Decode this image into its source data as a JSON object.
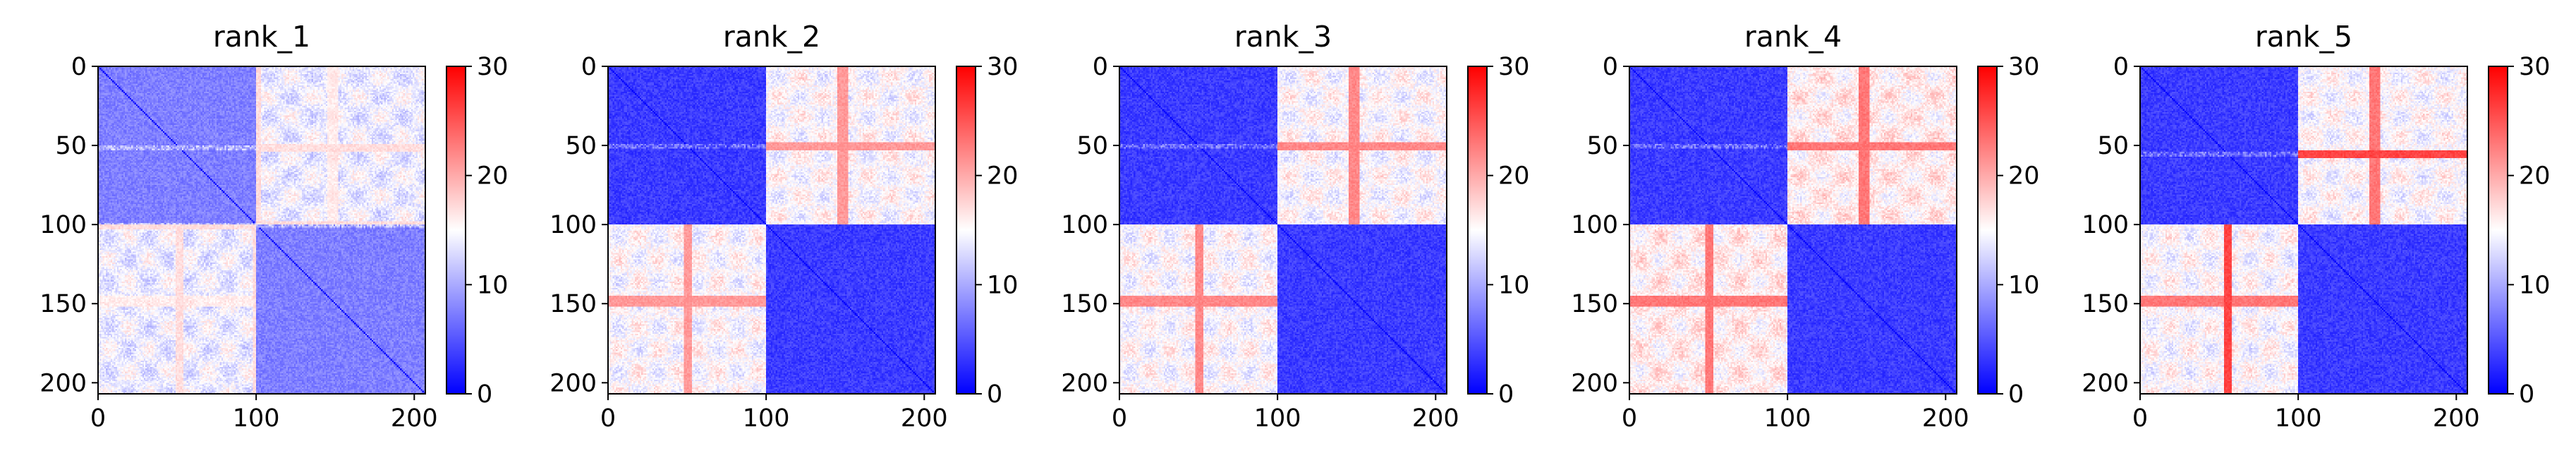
{
  "figure": {
    "background": "#ffffff"
  },
  "chart_data": [
    {
      "type": "heatmap",
      "title": "rank_1",
      "matrix_size": 207,
      "x_ticks": [
        0,
        100,
        200
      ],
      "y_ticks": [
        0,
        50,
        100,
        150,
        200
      ],
      "xlim": [
        0,
        207
      ],
      "ylim": [
        207,
        0
      ],
      "colorbar": {
        "ticks": [
          0,
          10,
          20,
          30
        ],
        "range": [
          0,
          30
        ],
        "colormap": "bwr",
        "colors": [
          "#0000ff",
          "#ffffff",
          "#ff0000"
        ]
      },
      "domain_boundary": 100,
      "pattern": {
        "within_domain_level": 6,
        "between_domain_level": 14,
        "hot_rows": [
          51,
          100
        ],
        "hot_row_level": 18,
        "hot_cols": [
          148
        ],
        "hot_col_level": 17
      }
    },
    {
      "type": "heatmap",
      "title": "rank_2",
      "matrix_size": 207,
      "x_ticks": [
        0,
        100,
        200
      ],
      "y_ticks": [
        0,
        50,
        100,
        150,
        200
      ],
      "xlim": [
        0,
        207
      ],
      "ylim": [
        207,
        0
      ],
      "colorbar": {
        "ticks": [
          0,
          10,
          20,
          30
        ],
        "range": [
          0,
          30
        ],
        "colormap": "bwr",
        "colors": [
          "#0000ff",
          "#ffffff",
          "#ff0000"
        ]
      },
      "domain_boundary": 100,
      "pattern": {
        "within_domain_level": 2,
        "between_domain_level": 15,
        "hot_rows": [
          50
        ],
        "hot_row_level": 22,
        "hot_cols": [
          148
        ],
        "hot_col_level": 22
      }
    },
    {
      "type": "heatmap",
      "title": "rank_3",
      "matrix_size": 207,
      "x_ticks": [
        0,
        100,
        200
      ],
      "y_ticks": [
        0,
        50,
        100,
        150,
        200
      ],
      "xlim": [
        0,
        207
      ],
      "ylim": [
        207,
        0
      ],
      "colorbar": {
        "ticks": [
          0,
          10,
          20,
          30
        ],
        "range": [
          0,
          30
        ],
        "colormap": "bwr",
        "colors": [
          "#0000ff",
          "#ffffff",
          "#ff0000"
        ]
      },
      "domain_boundary": 100,
      "pattern": {
        "within_domain_level": 2,
        "between_domain_level": 15,
        "hot_rows": [
          50
        ],
        "hot_row_level": 23,
        "hot_cols": [
          148
        ],
        "hot_col_level": 23
      }
    },
    {
      "type": "heatmap",
      "title": "rank_4",
      "matrix_size": 207,
      "x_ticks": [
        0,
        100,
        200
      ],
      "y_ticks": [
        0,
        50,
        100,
        150,
        200
      ],
      "xlim": [
        0,
        207
      ],
      "ylim": [
        207,
        0
      ],
      "colorbar": {
        "ticks": [
          0,
          10,
          20,
          30
        ],
        "range": [
          0,
          30
        ],
        "colormap": "bwr",
        "colors": [
          "#0000ff",
          "#ffffff",
          "#ff0000"
        ]
      },
      "domain_boundary": 100,
      "pattern": {
        "within_domain_level": 2,
        "between_domain_level": 16,
        "hot_rows": [
          50
        ],
        "hot_row_level": 24,
        "hot_cols": [
          148
        ],
        "hot_col_level": 24
      }
    },
    {
      "type": "heatmap",
      "title": "rank_5",
      "matrix_size": 207,
      "x_ticks": [
        0,
        100,
        200
      ],
      "y_ticks": [
        0,
        50,
        100,
        150,
        200
      ],
      "xlim": [
        0,
        207
      ],
      "ylim": [
        207,
        0
      ],
      "colorbar": {
        "ticks": [
          0,
          10,
          20,
          30
        ],
        "range": [
          0,
          30
        ],
        "colormap": "bwr",
        "colors": [
          "#0000ff",
          "#ffffff",
          "#ff0000"
        ]
      },
      "domain_boundary": 100,
      "pattern": {
        "within_domain_level": 2,
        "between_domain_level": 15,
        "hot_rows": [
          55
        ],
        "hot_row_level": 27,
        "hot_cols": [
          148
        ],
        "hot_col_level": 24
      }
    }
  ]
}
